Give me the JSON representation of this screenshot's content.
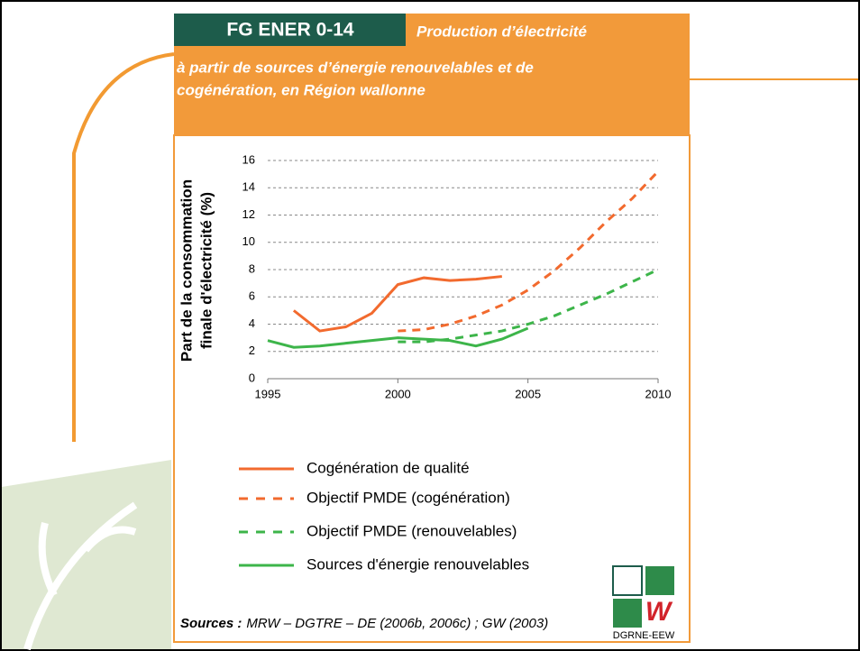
{
  "chart_data": {
    "type": "line",
    "code": "FG ENER 0-14",
    "title_lines": [
      "Production d’électricité",
      "à partir de sources d’énergie renouvelables et de",
      "cogénération, en Région wallonne"
    ],
    "ylabel_lines": [
      "Part de la consommation",
      "finale d'électricité (%)"
    ],
    "x": [
      1995,
      1996,
      1997,
      1998,
      1999,
      2000,
      2001,
      2002,
      2003,
      2004,
      2005,
      2006,
      2007,
      2008,
      2009,
      2010
    ],
    "xlim": [
      1995,
      2010
    ],
    "xticks": [
      1995,
      2000,
      2005,
      2010
    ],
    "ylim": [
      0,
      16
    ],
    "yticks": [
      0,
      2,
      4,
      6,
      8,
      10,
      12,
      14,
      16
    ],
    "grid": true,
    "series": [
      {
        "name": "Cogénération de qualité",
        "color": "#f26a2e",
        "dash": false,
        "values": [
          null,
          5.0,
          3.5,
          3.8,
          4.8,
          6.9,
          7.4,
          7.2,
          7.3,
          7.5,
          null,
          null,
          null,
          null,
          null,
          null
        ]
      },
      {
        "name": "Objectif PMDE (cogénération)",
        "color": "#f26a2e",
        "dash": true,
        "values": [
          null,
          null,
          null,
          null,
          null,
          3.5,
          3.6,
          4.0,
          4.6,
          5.4,
          6.5,
          7.9,
          9.6,
          11.5,
          13.2,
          15.2
        ]
      },
      {
        "name": "Objectif PMDE (renouvelables)",
        "color": "#3db54a",
        "dash": true,
        "values": [
          null,
          null,
          null,
          null,
          null,
          2.7,
          2.7,
          2.9,
          3.2,
          3.5,
          4.0,
          4.6,
          5.4,
          6.2,
          7.1,
          8.0
        ]
      },
      {
        "name": "Sources d'énergie renouvelables",
        "color": "#3db54a",
        "dash": false,
        "values": [
          2.8,
          2.3,
          2.4,
          2.6,
          2.8,
          3.0,
          2.9,
          2.8,
          2.4,
          2.9,
          3.7,
          null,
          null,
          null,
          null,
          null
        ]
      }
    ],
    "sources_label": "Sources :",
    "sources_text": "MRW – DGTRE – DE (2006b, 2006c) ; GW (2003)",
    "logo_text": "DGRNE-EEW"
  }
}
